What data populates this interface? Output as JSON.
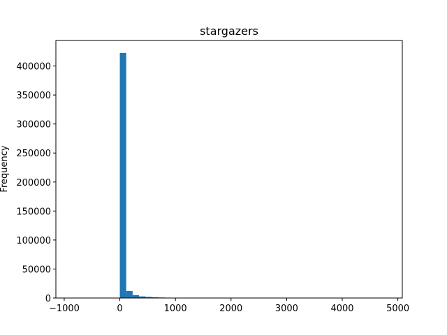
{
  "chart_data": {
    "type": "bar",
    "title": "stargazers",
    "xlabel": "",
    "ylabel": "Frequency",
    "xlim": [
      -1150,
      5080
    ],
    "ylim": [
      0,
      444000
    ],
    "bar_color": "#1f77b4",
    "grid": false,
    "xticks": [
      -1000,
      0,
      1000,
      2000,
      3000,
      4000,
      5000
    ],
    "xtick_labels": [
      "−1000",
      "0",
      "1000",
      "2000",
      "3000",
      "4000",
      "5000"
    ],
    "yticks": [
      0,
      50000,
      100000,
      150000,
      200000,
      250000,
      300000,
      350000,
      400000
    ],
    "ytick_labels": [
      "0",
      "50000",
      "100000",
      "150000",
      "200000",
      "250000",
      "300000",
      "350000",
      "400000"
    ],
    "bins": [
      {
        "x0": 0,
        "x1": 115,
        "value": 422500
      },
      {
        "x0": 115,
        "x1": 230,
        "value": 12000
      },
      {
        "x0": 230,
        "x1": 345,
        "value": 5000
      },
      {
        "x0": 345,
        "x1": 460,
        "value": 2800
      },
      {
        "x0": 460,
        "x1": 575,
        "value": 2000
      },
      {
        "x0": 575,
        "x1": 690,
        "value": 1300
      },
      {
        "x0": 690,
        "x1": 805,
        "value": 900
      },
      {
        "x0": 805,
        "x1": 920,
        "value": 650
      },
      {
        "x0": 920,
        "x1": 1035,
        "value": 300
      },
      {
        "x0": 1035,
        "x1": 1150,
        "value": 150
      },
      {
        "x0": 1150,
        "x1": 1265,
        "value": 100
      },
      {
        "x0": 1265,
        "x1": 1380,
        "value": 80
      },
      {
        "x0": 1380,
        "x1": 1495,
        "value": 60
      },
      {
        "x0": 1495,
        "x1": 1610,
        "value": 50
      }
    ]
  }
}
